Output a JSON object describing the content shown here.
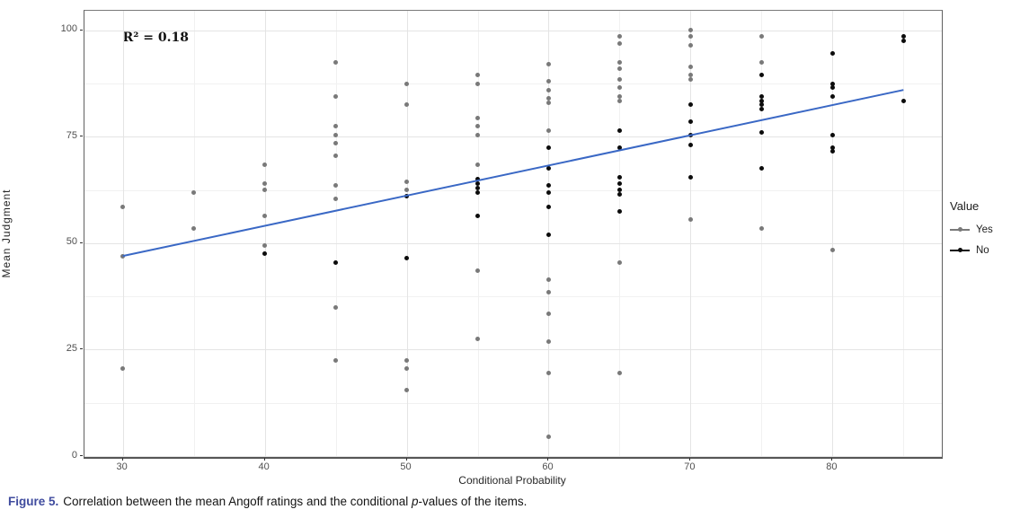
{
  "chart_data": {
    "type": "scatter",
    "xlabel": "Conditional Probability",
    "ylabel": "Mean Judgment",
    "xlim": [
      27.3,
      87.7
    ],
    "ylim": [
      -0.2,
      104.6
    ],
    "x_ticks": [
      30,
      40,
      50,
      60,
      70,
      80
    ],
    "y_ticks": [
      0,
      25,
      50,
      75,
      100
    ],
    "x_minor": [
      35,
      45,
      55,
      65,
      75,
      85
    ],
    "y_minor": [
      12.5,
      37.5,
      62.5,
      87.5
    ],
    "grid": "on",
    "annotation": {
      "text": "R² = 0.18",
      "x": 30,
      "y": 98
    },
    "regression_line": {
      "x1": 30,
      "y1": 47,
      "x2": 85,
      "y2": 86,
      "color": "#3A68C5",
      "r_squared": 0.18
    },
    "legend": {
      "title": "Value",
      "position": "right",
      "entries": [
        {
          "label": "Yes",
          "color": "#797979"
        },
        {
          "label": "No",
          "color": "#0c0c0c"
        }
      ]
    },
    "series": [
      {
        "name": "Yes",
        "color": "#797979",
        "points": [
          [
            30,
            58.5
          ],
          [
            30,
            47
          ],
          [
            30,
            20.5
          ],
          [
            35,
            62
          ],
          [
            35,
            53.5
          ],
          [
            40,
            68.5
          ],
          [
            40,
            64
          ],
          [
            40,
            62.5
          ],
          [
            40,
            56.5
          ],
          [
            40,
            49.5
          ],
          [
            45,
            92.5
          ],
          [
            45,
            84.5
          ],
          [
            45,
            77.5
          ],
          [
            45,
            75.5
          ],
          [
            45,
            73.5
          ],
          [
            45,
            70.5
          ],
          [
            45,
            63.5
          ],
          [
            45,
            60.5
          ],
          [
            45,
            35
          ],
          [
            45,
            22.5
          ],
          [
            50,
            87.5
          ],
          [
            50,
            82.5
          ],
          [
            50,
            64.5
          ],
          [
            50,
            62.5
          ],
          [
            50,
            22.5
          ],
          [
            50,
            20.5
          ],
          [
            50,
            15.5
          ],
          [
            55,
            89.5
          ],
          [
            55,
            87.5
          ],
          [
            55,
            79.5
          ],
          [
            55,
            77.5
          ],
          [
            55,
            75.5
          ],
          [
            55,
            68.5
          ],
          [
            55,
            43.5
          ],
          [
            55,
            27.5
          ],
          [
            60,
            92
          ],
          [
            60,
            88
          ],
          [
            60,
            86
          ],
          [
            60,
            84
          ],
          [
            60,
            83
          ],
          [
            60,
            76.5
          ],
          [
            60,
            41.5
          ],
          [
            60,
            38.5
          ],
          [
            60,
            33.5
          ],
          [
            60,
            27
          ],
          [
            60,
            19.5
          ],
          [
            60,
            4.5
          ],
          [
            65,
            98.5
          ],
          [
            65,
            97
          ],
          [
            65,
            92.5
          ],
          [
            65,
            91
          ],
          [
            65,
            88.5
          ],
          [
            65,
            86.5
          ],
          [
            65,
            84.5
          ],
          [
            65,
            83.5
          ],
          [
            65,
            45.5
          ],
          [
            65,
            19.5
          ],
          [
            70,
            100
          ],
          [
            70,
            98.5
          ],
          [
            70,
            96.5
          ],
          [
            70,
            91.5
          ],
          [
            70,
            89.5
          ],
          [
            70,
            88.5
          ],
          [
            70,
            55.5
          ],
          [
            75,
            98.5
          ],
          [
            75,
            92.5
          ],
          [
            75,
            53.5
          ],
          [
            80,
            48.5
          ]
        ]
      },
      {
        "name": "No",
        "color": "#0c0c0c",
        "points": [
          [
            40,
            47.5
          ],
          [
            45,
            45.5
          ],
          [
            50,
            61
          ],
          [
            50,
            46.5
          ],
          [
            55,
            65
          ],
          [
            55,
            64
          ],
          [
            55,
            63
          ],
          [
            55,
            62
          ],
          [
            55,
            56.5
          ],
          [
            60,
            72.5
          ],
          [
            60,
            67.5
          ],
          [
            60,
            63.5
          ],
          [
            60,
            62
          ],
          [
            60,
            58.5
          ],
          [
            60,
            52
          ],
          [
            65,
            76.5
          ],
          [
            65,
            72.5
          ],
          [
            65,
            65.5
          ],
          [
            65,
            64
          ],
          [
            65,
            62.5
          ],
          [
            65,
            61.5
          ],
          [
            65,
            57.5
          ],
          [
            70,
            82.5
          ],
          [
            70,
            78.5
          ],
          [
            70,
            75.5
          ],
          [
            70,
            73
          ],
          [
            70,
            65.5
          ],
          [
            75,
            89.5
          ],
          [
            75,
            84.5
          ],
          [
            75,
            83.5
          ],
          [
            75,
            82.5
          ],
          [
            75,
            81.5
          ],
          [
            75,
            76
          ],
          [
            75,
            67.5
          ],
          [
            80,
            94.5
          ],
          [
            80,
            87.5
          ],
          [
            80,
            86.5
          ],
          [
            80,
            84.5
          ],
          [
            80,
            75.5
          ],
          [
            80,
            72.5
          ],
          [
            80,
            71.5
          ],
          [
            85,
            98.5
          ],
          [
            85,
            97.5
          ],
          [
            85,
            83.5
          ]
        ]
      }
    ]
  },
  "caption": {
    "label": "Figure 5.",
    "before_p": "Correlation between the mean Angoff ratings and the conditional ",
    "p": "p",
    "after_p": "-values of the items."
  }
}
